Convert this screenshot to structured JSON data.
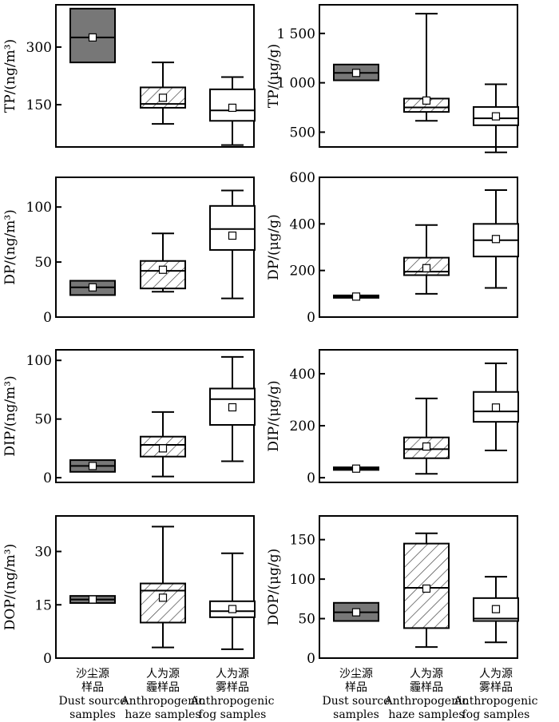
{
  "chart_data": [
    {
      "type": "box",
      "ylabel": "TP/(ng/m³)",
      "ylim": [
        40,
        410
      ],
      "yticks": [
        150,
        300
      ],
      "tick_labels": [
        "150",
        "300"
      ],
      "series": [
        {
          "category": "Dust source samples",
          "min": 260,
          "q1": 260,
          "median": 325,
          "q3": 400,
          "max": 400,
          "mean": 325,
          "fill": "dark"
        },
        {
          "category": "Anthropogenic haze samples",
          "min": 100,
          "q1": 142,
          "median": 152,
          "q3": 195,
          "max": 260,
          "mean": 168,
          "fill": "hatch"
        },
        {
          "category": "Anthropogenic fog samples",
          "min": 45,
          "q1": 108,
          "median": 135,
          "q3": 190,
          "max": 222,
          "mean": 142,
          "fill": "white"
        }
      ]
    },
    {
      "type": "box",
      "ylabel": "TP/(μg/g)",
      "ylim": [
        350,
        1790
      ],
      "yticks": [
        500,
        1000,
        1500
      ],
      "tick_labels": [
        "500",
        "1 000",
        "1 500"
      ],
      "series": [
        {
          "category": "Dust source samples",
          "min": 1025,
          "q1": 1025,
          "median": 1100,
          "q3": 1185,
          "max": 1185,
          "mean": 1100,
          "fill": "dark"
        },
        {
          "category": "Anthropogenic haze samples",
          "min": 615,
          "q1": 705,
          "median": 750,
          "q3": 840,
          "max": 1700,
          "mean": 820,
          "fill": "hatch"
        },
        {
          "category": "Anthropogenic fog samples",
          "min": 295,
          "q1": 570,
          "median": 640,
          "q3": 755,
          "max": 985,
          "mean": 660,
          "fill": "white"
        }
      ]
    },
    {
      "type": "box",
      "ylabel": "DP/(ng/m³)",
      "ylim": [
        0,
        127
      ],
      "yticks": [
        0,
        50,
        100
      ],
      "tick_labels": [
        "0",
        "50",
        "100"
      ],
      "series": [
        {
          "category": "Dust source samples",
          "min": 20,
          "q1": 20,
          "median": 27,
          "q3": 33,
          "max": 33,
          "mean": 27,
          "fill": "dark"
        },
        {
          "category": "Anthropogenic haze samples",
          "min": 23,
          "q1": 26,
          "median": 42,
          "q3": 51,
          "max": 76,
          "mean": 43,
          "fill": "hatch"
        },
        {
          "category": "Anthropogenic fog samples",
          "min": 17,
          "q1": 61,
          "median": 80,
          "q3": 101,
          "max": 115,
          "mean": 74,
          "fill": "white"
        }
      ]
    },
    {
      "type": "box",
      "ylabel": "DP/(μg/g)",
      "ylim": [
        0,
        600
      ],
      "yticks": [
        0,
        200,
        400,
        600
      ],
      "tick_labels": [
        "0",
        "200",
        "400",
        "600"
      ],
      "series": [
        {
          "category": "Dust source samples",
          "min": 83,
          "q1": 83,
          "median": 88,
          "q3": 93,
          "max": 93,
          "mean": 88,
          "fill": "dark"
        },
        {
          "category": "Anthropogenic haze samples",
          "min": 100,
          "q1": 180,
          "median": 195,
          "q3": 255,
          "max": 395,
          "mean": 210,
          "fill": "hatch"
        },
        {
          "category": "Anthropogenic fog samples",
          "min": 125,
          "q1": 260,
          "median": 330,
          "q3": 400,
          "max": 545,
          "mean": 335,
          "fill": "white"
        }
      ]
    },
    {
      "type": "box",
      "ylabel": "DIP/(ng/m³)",
      "ylim": [
        -4,
        109
      ],
      "yticks": [
        0,
        50,
        100
      ],
      "tick_labels": [
        "0",
        "50",
        "100"
      ],
      "series": [
        {
          "category": "Dust source samples",
          "min": 5,
          "q1": 5,
          "median": 10,
          "q3": 15,
          "max": 15,
          "mean": 10,
          "fill": "dark"
        },
        {
          "category": "Anthropogenic haze samples",
          "min": 1,
          "q1": 18,
          "median": 28,
          "q3": 35,
          "max": 56,
          "mean": 25,
          "fill": "hatch"
        },
        {
          "category": "Anthropogenic fog samples",
          "min": 14,
          "q1": 45,
          "median": 67,
          "q3": 76,
          "max": 103,
          "mean": 60,
          "fill": "white"
        }
      ]
    },
    {
      "type": "box",
      "ylabel": "DIP/(μg/g)",
      "ylim": [
        -18,
        492
      ],
      "yticks": [
        0,
        200,
        400
      ],
      "tick_labels": [
        "0",
        "200",
        "400"
      ],
      "series": [
        {
          "category": "Dust source samples",
          "min": 30,
          "q1": 30,
          "median": 35,
          "q3": 40,
          "max": 40,
          "mean": 35,
          "fill": "dark"
        },
        {
          "category": "Anthropogenic haze samples",
          "min": 15,
          "q1": 75,
          "median": 110,
          "q3": 155,
          "max": 305,
          "mean": 120,
          "fill": "hatch"
        },
        {
          "category": "Anthropogenic fog samples",
          "min": 105,
          "q1": 215,
          "median": 255,
          "q3": 330,
          "max": 440,
          "mean": 270,
          "fill": "white"
        }
      ]
    },
    {
      "type": "box",
      "ylabel": "DOP/(ng/m³)",
      "ylim": [
        0,
        40
      ],
      "yticks": [
        0,
        15,
        30
      ],
      "tick_labels": [
        "0",
        "15",
        "30"
      ],
      "series": [
        {
          "category": "Dust source samples",
          "min": 15.5,
          "q1": 15.5,
          "median": 16.5,
          "q3": 17.5,
          "max": 17.5,
          "mean": 16.5,
          "fill": "dark"
        },
        {
          "category": "Anthropogenic haze samples",
          "min": 3,
          "q1": 10,
          "median": 19,
          "q3": 21,
          "max": 37,
          "mean": 17,
          "fill": "hatch"
        },
        {
          "category": "Anthropogenic fog samples",
          "min": 2.5,
          "q1": 11.5,
          "median": 13.2,
          "q3": 16,
          "max": 29.5,
          "mean": 13.8,
          "fill": "white"
        }
      ]
    },
    {
      "type": "box",
      "ylabel": "DOP/(μg/g)",
      "ylim": [
        0,
        180
      ],
      "yticks": [
        0,
        50,
        100,
        150
      ],
      "tick_labels": [
        "0",
        "50",
        "100",
        "150"
      ],
      "series": [
        {
          "category": "Dust source samples",
          "min": 47,
          "q1": 47,
          "median": 58,
          "q3": 70,
          "max": 70,
          "mean": 58,
          "fill": "dark"
        },
        {
          "category": "Anthropogenic haze samples",
          "min": 14,
          "q1": 38,
          "median": 89,
          "q3": 145,
          "max": 158,
          "mean": 88,
          "fill": "hatch"
        },
        {
          "category": "Anthropogenic fog samples",
          "min": 20,
          "q1": 47,
          "median": 50,
          "q3": 76,
          "max": 103,
          "mean": 62,
          "fill": "white"
        }
      ]
    }
  ],
  "categories": [
    {
      "cn1": "沙尘源",
      "cn2": "样品",
      "en1": "Dust source",
      "en2": "samples"
    },
    {
      "cn1": "人为源",
      "cn2": "霾样品",
      "en1": "Anthropogenic",
      "en2": "haze samples"
    },
    {
      "cn1": "人为源",
      "cn2": "雾样品",
      "en1": "Anthropogenic",
      "en2": "fog samples"
    }
  ],
  "colors": {
    "dark": "#777777",
    "white": "#ffffff",
    "hatch_bg": "#ffffff",
    "hatch_line": "#444444",
    "stroke": "#000000"
  }
}
